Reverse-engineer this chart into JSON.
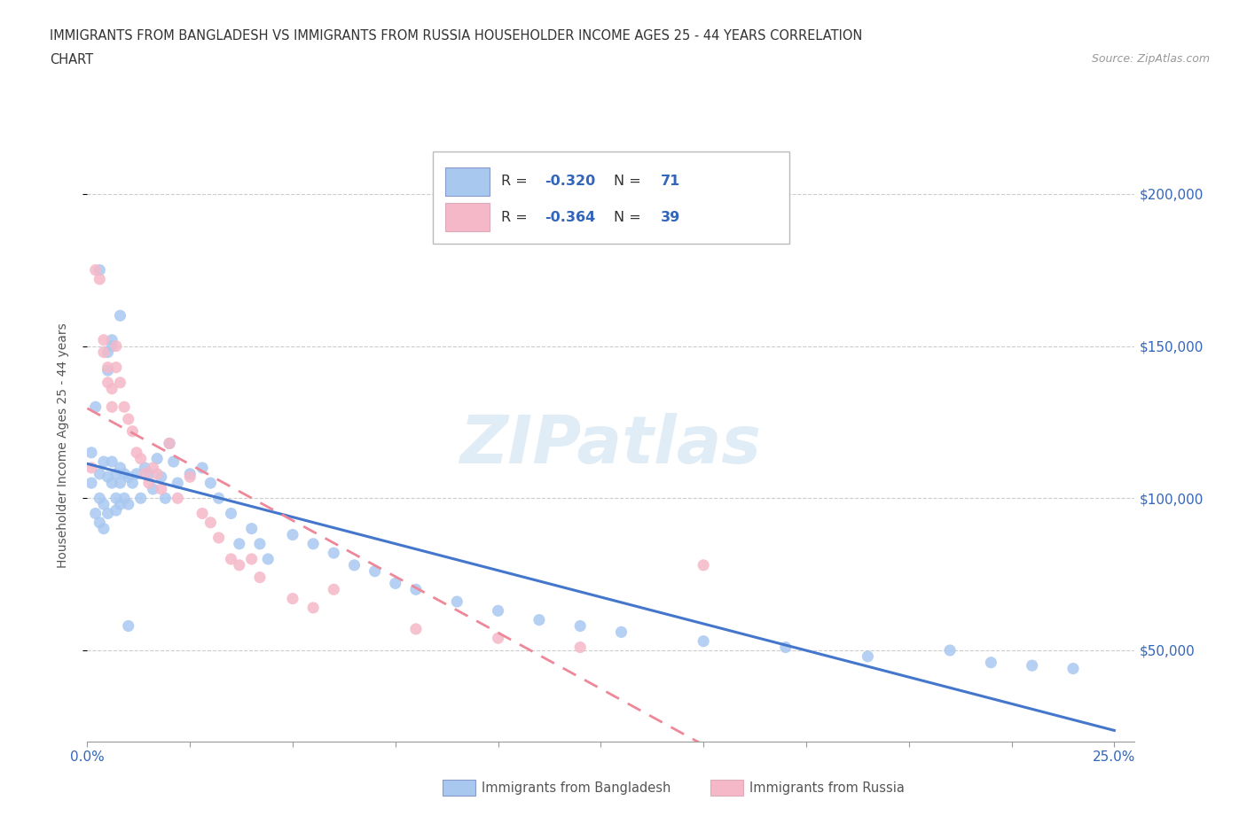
{
  "title_line1": "IMMIGRANTS FROM BANGLADESH VS IMMIGRANTS FROM RUSSIA HOUSEHOLDER INCOME AGES 25 - 44 YEARS CORRELATION",
  "title_line2": "CHART",
  "source": "Source: ZipAtlas.com",
  "ylabel": "Householder Income Ages 25 - 44 years",
  "xlim": [
    0.0,
    0.255
  ],
  "ylim": [
    20000,
    215000
  ],
  "yticks": [
    50000,
    100000,
    150000,
    200000
  ],
  "ytick_labels": [
    "$50,000",
    "$100,000",
    "$150,000",
    "$200,000"
  ],
  "xticks": [
    0.0,
    0.025,
    0.05,
    0.075,
    0.1,
    0.125,
    0.15,
    0.175,
    0.2,
    0.225,
    0.25
  ],
  "bangladesh_color": "#a8c8f0",
  "russia_color": "#f5b8c8",
  "bangladesh_line_color": "#4477cc",
  "russia_line_color": "#ee8899",
  "r_bangladesh": -0.32,
  "n_bangladesh": 71,
  "r_russia": -0.364,
  "n_russia": 39,
  "watermark": "ZIPatlas",
  "bangladesh_x": [
    0.001,
    0.001,
    0.002,
    0.002,
    0.003,
    0.003,
    0.003,
    0.004,
    0.004,
    0.004,
    0.005,
    0.005,
    0.005,
    0.005,
    0.006,
    0.006,
    0.006,
    0.007,
    0.007,
    0.007,
    0.008,
    0.008,
    0.008,
    0.009,
    0.009,
    0.01,
    0.01,
    0.011,
    0.012,
    0.013,
    0.014,
    0.015,
    0.016,
    0.017,
    0.018,
    0.019,
    0.02,
    0.021,
    0.022,
    0.025,
    0.028,
    0.03,
    0.032,
    0.035,
    0.037,
    0.04,
    0.042,
    0.044,
    0.05,
    0.055,
    0.06,
    0.065,
    0.07,
    0.075,
    0.08,
    0.09,
    0.1,
    0.11,
    0.12,
    0.13,
    0.15,
    0.17,
    0.19,
    0.21,
    0.22,
    0.23,
    0.24,
    0.003,
    0.006,
    0.008,
    0.01
  ],
  "bangladesh_y": [
    105000,
    115000,
    130000,
    95000,
    108000,
    100000,
    92000,
    112000,
    98000,
    90000,
    148000,
    142000,
    107000,
    95000,
    150000,
    112000,
    105000,
    108000,
    100000,
    96000,
    110000,
    105000,
    98000,
    108000,
    100000,
    107000,
    98000,
    105000,
    108000,
    100000,
    110000,
    108000,
    103000,
    113000,
    107000,
    100000,
    118000,
    112000,
    105000,
    108000,
    110000,
    105000,
    100000,
    95000,
    85000,
    90000,
    85000,
    80000,
    88000,
    85000,
    82000,
    78000,
    76000,
    72000,
    70000,
    66000,
    63000,
    60000,
    58000,
    56000,
    53000,
    51000,
    48000,
    50000,
    46000,
    45000,
    44000,
    175000,
    152000,
    160000,
    58000
  ],
  "russia_x": [
    0.001,
    0.002,
    0.003,
    0.004,
    0.004,
    0.005,
    0.005,
    0.006,
    0.006,
    0.007,
    0.007,
    0.008,
    0.009,
    0.01,
    0.011,
    0.012,
    0.013,
    0.014,
    0.015,
    0.016,
    0.017,
    0.018,
    0.02,
    0.022,
    0.025,
    0.028,
    0.03,
    0.032,
    0.035,
    0.037,
    0.04,
    0.042,
    0.05,
    0.055,
    0.06,
    0.08,
    0.1,
    0.12,
    0.15
  ],
  "russia_y": [
    110000,
    175000,
    172000,
    148000,
    152000,
    143000,
    138000,
    136000,
    130000,
    150000,
    143000,
    138000,
    130000,
    126000,
    122000,
    115000,
    113000,
    108000,
    105000,
    110000,
    108000,
    103000,
    118000,
    100000,
    107000,
    95000,
    92000,
    87000,
    80000,
    78000,
    80000,
    74000,
    67000,
    64000,
    70000,
    57000,
    54000,
    51000,
    78000
  ]
}
